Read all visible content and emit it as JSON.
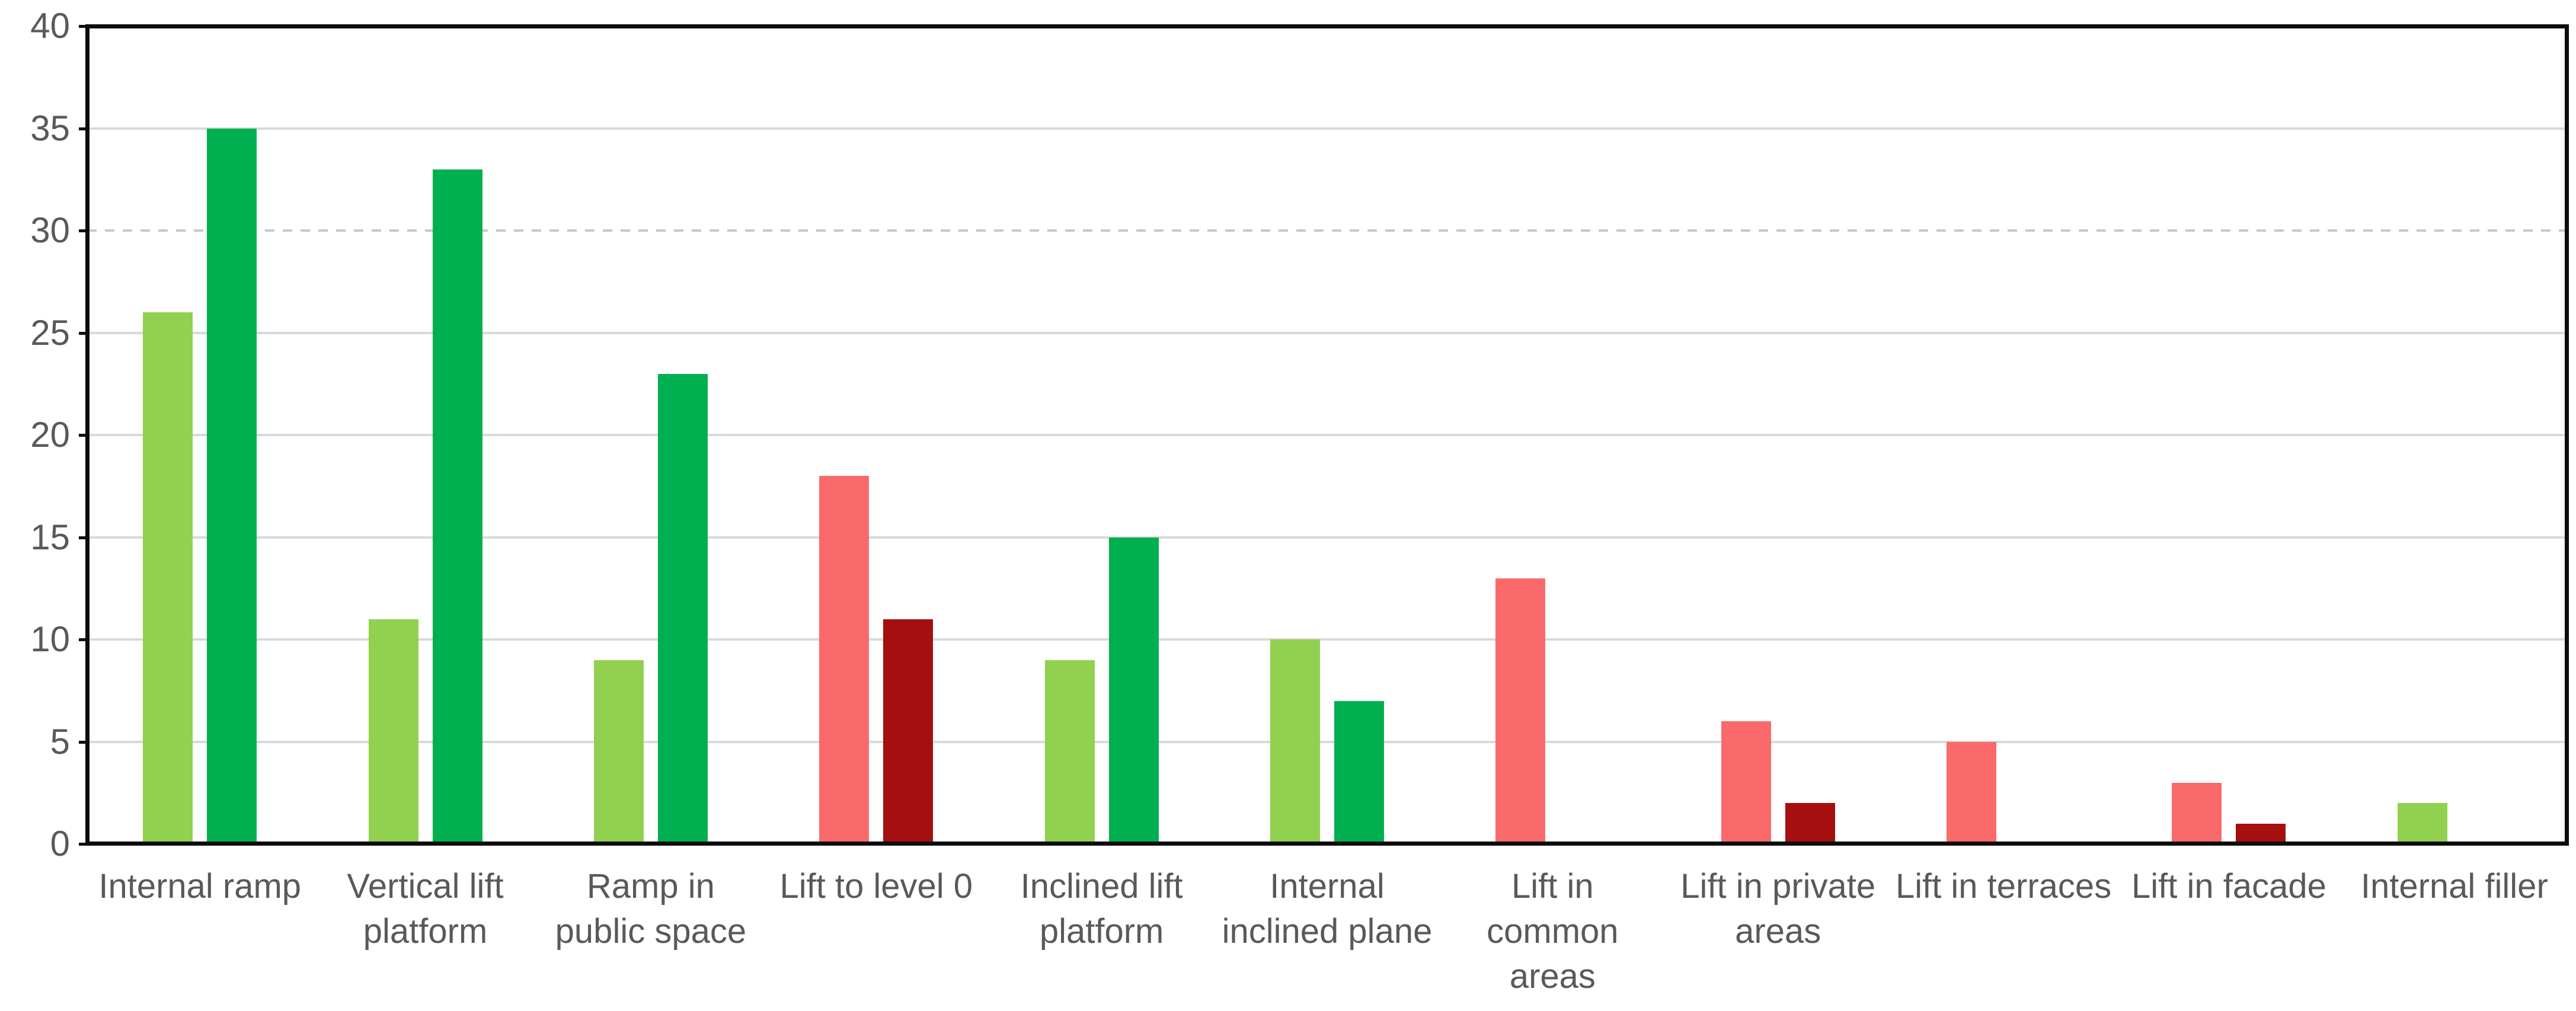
{
  "chart_data": {
    "type": "bar",
    "title": "",
    "xlabel": "",
    "ylabel": "",
    "ylim": [
      0,
      40
    ],
    "yticks": [
      0,
      5,
      10,
      15,
      20,
      25,
      30,
      35,
      40
    ],
    "grid": "horizontal major gridlines every 5; gridline at 30 appears dashed; others solid",
    "legend": "none",
    "plot_border": "black box around full plot area",
    "categories": [
      "Internal ramp",
      "Vertical lift platform",
      "Ramp in public space",
      "Lift to level 0",
      "Inclined lift platform",
      "Internal inclined plane",
      "Lift in common areas",
      "Lift in private areas",
      "Lift in terraces",
      "Lift in facade",
      "Internal filler"
    ],
    "category_label_lines": [
      [
        "Internal ramp"
      ],
      [
        "Vertical lift",
        "platform"
      ],
      [
        "Ramp in",
        "public space"
      ],
      [
        "Lift to level 0"
      ],
      [
        "Inclined lift",
        "platform"
      ],
      [
        "Internal",
        "inclined plane"
      ],
      [
        "Lift in",
        "common",
        "areas"
      ],
      [
        "Lift in private",
        "areas"
      ],
      [
        "Lift in terraces"
      ],
      [
        "Lift in facade"
      ],
      [
        "Internal filler"
      ]
    ],
    "series": [
      {
        "name": "series-1-lighter",
        "values": [
          26,
          11,
          9,
          18,
          9,
          10,
          13,
          6,
          5,
          3,
          2
        ]
      },
      {
        "name": "series-2-darker",
        "values": [
          35,
          33,
          23,
          11,
          15,
          7,
          0,
          2,
          0,
          1,
          0
        ]
      }
    ],
    "color_scheme_per_category": [
      "green",
      "green",
      "green",
      "red",
      "green",
      "green",
      "red",
      "red",
      "red",
      "red",
      "green"
    ],
    "palette": {
      "light_green": "#92D050",
      "dark_green": "#00B050",
      "light_red": "#FA6A6A",
      "dark_red": "#A50F0F",
      "gridline": "#D9D9D9",
      "gridline_dashed": "#C8C8C8",
      "axis_line": "#0D0D0D",
      "text": "#595959",
      "background": "#FFFFFF"
    }
  }
}
